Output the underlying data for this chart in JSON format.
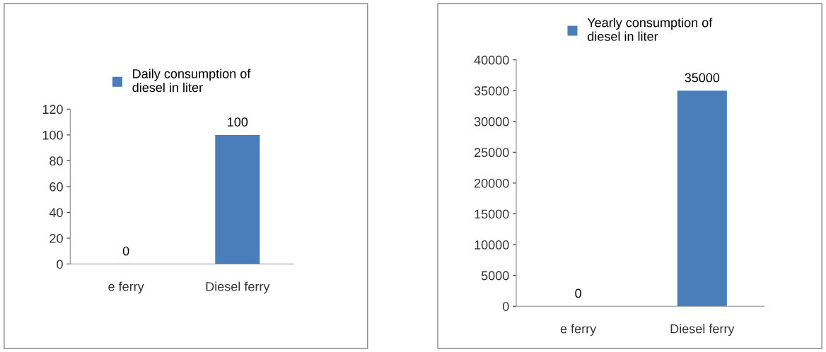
{
  "chart_data": [
    {
      "type": "bar",
      "categories": [
        "e ferry",
        "Diesel ferry"
      ],
      "series": [
        {
          "name": "Daily consumption of diesel in liter",
          "color": "#4a7ebb",
          "values": [
            0,
            100
          ]
        }
      ],
      "ylim": [
        0,
        120
      ],
      "yticks": [
        0,
        20,
        40,
        60,
        80,
        100,
        120
      ],
      "data_labels": true,
      "legend": "top",
      "grid": false
    },
    {
      "type": "bar",
      "categories": [
        "e ferry",
        "Diesel ferry"
      ],
      "series": [
        {
          "name": "Yearly consumption of diesel in liter",
          "color": "#4a7ebb",
          "values": [
            0,
            35000
          ]
        }
      ],
      "ylim": [
        0,
        40000
      ],
      "yticks": [
        0,
        5000,
        10000,
        15000,
        20000,
        25000,
        30000,
        35000,
        40000
      ],
      "data_labels": true,
      "legend": "top",
      "grid": false
    }
  ]
}
